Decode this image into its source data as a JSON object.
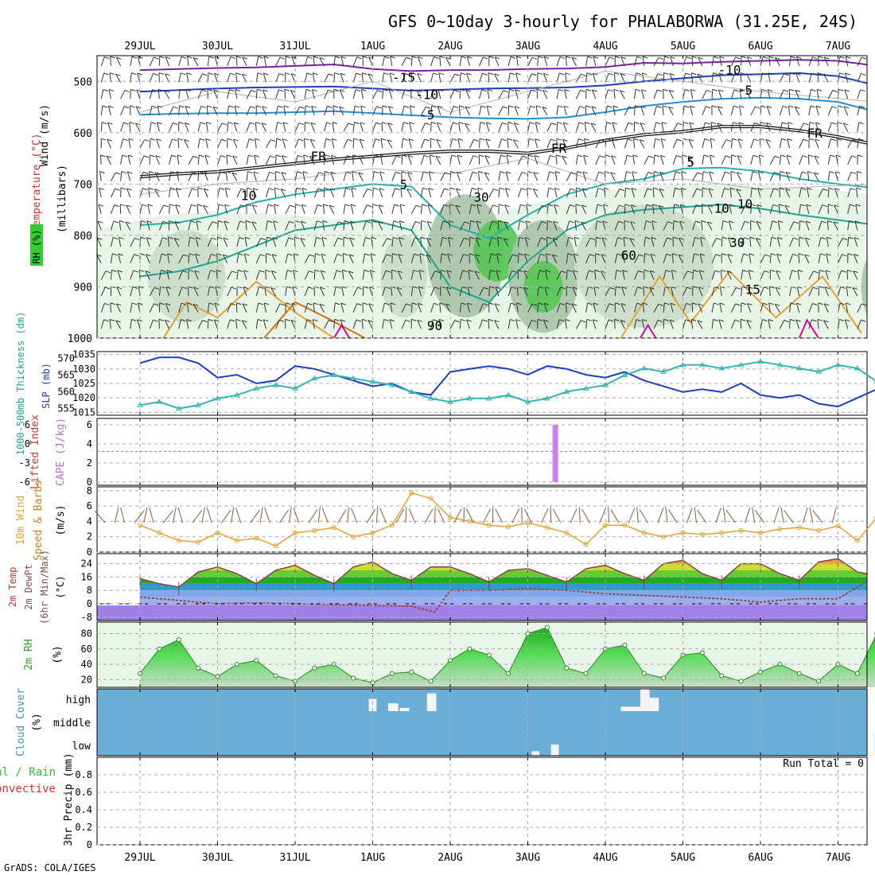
{
  "header": {
    "title": "GFS 0~10day 3-hourly for PHALABORWA (31.25E, 24S)",
    "credit": "GrADS: COLA/IGES"
  },
  "colors": {
    "rh_green": "#33cc33",
    "barb": "#333333",
    "slp_line": "#1a3fbf",
    "thickness_line": "#33b3b3",
    "cape_bar": "#c87ff0",
    "lifted_line": "#e05a5a",
    "wind_speed": "#e8a030",
    "rh2m_fill": "#33cc33",
    "cloud_fill": "#6aaed6",
    "dewpt_line": "#8b4c4c"
  },
  "chart_data": [
    {
      "id": "upper",
      "type": "contour",
      "title": "GFS 0~10day 3-hourly for PHALABORWA (31.25E, 24S)",
      "ylabel_parts": [
        "Wind (m/s)",
        "Temperature (°C)",
        "(millibars)",
        "RH (%)"
      ],
      "x_labels": [
        "29JUL",
        "30JUL",
        "31JUL",
        "1AUG",
        "2AUG",
        "3AUG",
        "4AUG",
        "5AUG",
        "6AUG",
        "7AUG"
      ],
      "y_ticks": [
        500,
        600,
        700,
        800,
        900,
        1000
      ],
      "ylim": [
        1000,
        450
      ],
      "contour_labels": [
        {
          "text": "-15",
          "day": 3.4,
          "p": 492
        },
        {
          "text": "-10",
          "day": 3.7,
          "p": 525
        },
        {
          "text": "-5",
          "day": 3.7,
          "p": 565
        },
        {
          "text": "-10",
          "day": 7.6,
          "p": 477
        },
        {
          "text": "-5",
          "day": 7.8,
          "p": 517
        },
        {
          "text": "FR",
          "day": 2.3,
          "p": 645
        },
        {
          "text": "FR",
          "day": 5.4,
          "p": 630
        },
        {
          "text": "FR",
          "day": 8.7,
          "p": 600
        },
        {
          "text": "5",
          "day": 3.4,
          "p": 700
        },
        {
          "text": "5",
          "day": 7.1,
          "p": 657
        },
        {
          "text": "10",
          "day": 7.8,
          "p": 738
        },
        {
          "text": "15",
          "day": 7.9,
          "p": 905
        },
        {
          "text": "10",
          "day": 1.4,
          "p": 722
        },
        {
          "text": "30",
          "day": 4.4,
          "p": 725
        },
        {
          "text": "10",
          "day": 7.5,
          "p": 747
        },
        {
          "text": "30",
          "day": 7.7,
          "p": 813
        },
        {
          "text": "60",
          "day": 6.3,
          "p": 838
        },
        {
          "text": "90",
          "day": 3.8,
          "p": 975
        }
      ],
      "isotherms": [
        {
          "label": "-15",
          "color": "#7a1fa0",
          "x": [
            0,
            0.5,
            1,
            1.5,
            2,
            2.5,
            3,
            3.5,
            4,
            4.5,
            5,
            5.5,
            6,
            6.5,
            7,
            7.5,
            8,
            8.5,
            9,
            9.5
          ],
          "p": [
            478,
            476,
            474,
            473,
            470,
            467,
            476,
            480,
            478,
            478,
            476,
            475,
            472,
            464,
            465,
            462,
            460,
            458,
            460,
            470
          ]
        },
        {
          "label": "-10",
          "color": "#1a3fbf",
          "x": [
            0,
            0.5,
            1,
            1.5,
            2,
            2.5,
            3,
            3.5,
            4,
            4.5,
            5,
            5.5,
            6,
            6.5,
            7,
            7.5,
            8,
            8.5,
            9,
            9.5
          ],
          "p": [
            520,
            517,
            514,
            512,
            511,
            510,
            514,
            518,
            516,
            514,
            513,
            512,
            508,
            500,
            494,
            488,
            486,
            484,
            490,
            508
          ]
        },
        {
          "label": "-5",
          "color": "#2090d0",
          "x": [
            0,
            0.5,
            1,
            1.5,
            2,
            2.5,
            3,
            3.5,
            4,
            4.5,
            5,
            5.5,
            6,
            6.5,
            7,
            7.5,
            8,
            8.5,
            9,
            9.5
          ],
          "p": [
            565,
            563,
            562,
            562,
            560,
            558,
            562,
            566,
            570,
            572,
            573,
            570,
            560,
            548,
            540,
            534,
            532,
            534,
            540,
            560
          ]
        },
        {
          "label": "FR",
          "color": "#111111",
          "x": [
            0,
            0.5,
            1,
            1.5,
            2,
            2.5,
            3,
            3.5,
            4,
            4.5,
            5,
            5.5,
            6,
            6.5,
            7,
            7.5,
            8,
            8.5,
            9,
            9.5
          ],
          "p": [
            686,
            680,
            676,
            668,
            660,
            652,
            646,
            640,
            636,
            636,
            640,
            630,
            615,
            604,
            598,
            588,
            588,
            596,
            608,
            624
          ]
        },
        {
          "label": "5",
          "color": "#22b0b0",
          "x": [
            0,
            0.5,
            1,
            1.5,
            2,
            2.5,
            3,
            3.5,
            4,
            4.5,
            5,
            5.5,
            6,
            6.5,
            7,
            7.5,
            8,
            8.5,
            9,
            9.5
          ],
          "p": [
            780,
            775,
            760,
            735,
            720,
            710,
            700,
            705,
            780,
            805,
            760,
            720,
            700,
            690,
            670,
            668,
            675,
            690,
            700,
            708
          ]
        },
        {
          "label": "10",
          "color": "#1aa890",
          "x": [
            0,
            0.5,
            1,
            1.5,
            2,
            2.5,
            3,
            3.5,
            4,
            4.5,
            5,
            5.5,
            6,
            6.5,
            7,
            7.5,
            8,
            8.5,
            9,
            9.5
          ],
          "p": [
            880,
            870,
            850,
            820,
            790,
            780,
            770,
            790,
            900,
            930,
            850,
            790,
            760,
            750,
            745,
            740,
            748,
            760,
            770,
            780
          ]
        }
      ],
      "rh_blobs": [
        {
          "day": 0.6,
          "p": 880,
          "rx": 0.5,
          "rp": 90,
          "level": 1
        },
        {
          "day": 3.4,
          "p": 880,
          "rx": 0.3,
          "rp": 80,
          "level": 1
        },
        {
          "day": 4.2,
          "p": 840,
          "rx": 0.5,
          "rp": 120,
          "level": 2
        },
        {
          "day": 4.6,
          "p": 830,
          "rx": 0.3,
          "rp": 60,
          "level": 3
        },
        {
          "day": 5.2,
          "p": 880,
          "rx": 0.45,
          "rp": 110,
          "level": 2
        },
        {
          "day": 5.2,
          "p": 900,
          "rx": 0.25,
          "rp": 50,
          "level": 3
        },
        {
          "day": 6.5,
          "p": 860,
          "rx": 0.9,
          "rp": 120,
          "level": 1
        },
        {
          "day": 9.5,
          "p": 900,
          "rx": 0.2,
          "rp": 70,
          "level": 2
        }
      ]
    },
    {
      "id": "slp_thickness",
      "type": "line",
      "ylabel": "1000-500mb Thickness (dm)",
      "ylabel_secondary": "SLP (mb)",
      "left_ticks": [
        555,
        560,
        565,
        570
      ],
      "right_ticks": [
        1015,
        1020,
        1025,
        1030,
        1035
      ],
      "left_lim": [
        553,
        572
      ],
      "right_lim": [
        1014,
        1036
      ],
      "series": [
        {
          "role": "slp",
          "color": "#1a3fbf",
          "x": [
            0,
            0.25,
            0.5,
            0.75,
            1,
            1.25,
            1.5,
            1.75,
            2,
            2.25,
            2.5,
            2.75,
            3,
            3.25,
            3.5,
            3.75,
            4,
            4.25,
            4.5,
            4.75,
            5,
            5.25,
            5.5,
            5.75,
            6,
            6.25,
            6.5,
            6.75,
            7,
            7.25,
            7.5,
            7.75,
            8,
            8.25,
            8.5,
            8.75,
            9,
            9.25,
            9.5
          ],
          "values": [
            1032,
            1034,
            1034,
            1032,
            1027,
            1028,
            1025,
            1026,
            1031,
            1030,
            1028,
            1026,
            1024,
            1025,
            1022,
            1021,
            1029,
            1030,
            1031,
            1030,
            1028,
            1031,
            1030,
            1028,
            1027,
            1029,
            1026,
            1024,
            1022,
            1023,
            1022,
            1025,
            1021,
            1020,
            1021,
            1018,
            1017,
            1020,
            1023
          ]
        },
        {
          "role": "thickness",
          "color": "#33b3b3",
          "x": [
            0,
            0.25,
            0.5,
            0.75,
            1,
            1.25,
            1.5,
            1.75,
            2,
            2.25,
            2.5,
            2.75,
            3,
            3.25,
            3.5,
            3.75,
            4,
            4.25,
            4.5,
            4.75,
            5,
            5.25,
            5.5,
            5.75,
            6,
            6.25,
            6.5,
            6.75,
            7,
            7.25,
            7.5,
            7.75,
            8,
            8.25,
            8.5,
            8.75,
            9,
            9.25,
            9.5
          ],
          "values": [
            556,
            557,
            555,
            556,
            558,
            559,
            561,
            562,
            561,
            564,
            565,
            564,
            563,
            562,
            560,
            558,
            557,
            558,
            558,
            559,
            557,
            558,
            560,
            561,
            562,
            565,
            567,
            566,
            568,
            568,
            567,
            568,
            569,
            568,
            567,
            566,
            568,
            567,
            563
          ]
        }
      ]
    },
    {
      "id": "cape_li",
      "type": "bar",
      "ylabel": "Lifted Index",
      "ylabel_secondary": "CAPE (J/kg)",
      "left_ticks": [
        "6",
        "0",
        "-3",
        "-6"
      ],
      "right_ticks": [
        "0",
        "2",
        "4",
        "6"
      ],
      "cape_bars": [
        {
          "day": 5.35,
          "value": 6
        }
      ],
      "li_zero_line": 0
    },
    {
      "id": "wind10m",
      "type": "line",
      "ylabel": "10m Wind Speed & Barbs (m/s)",
      "y_ticks": [
        0,
        2,
        4,
        6,
        8
      ],
      "ylim": [
        0,
        8.5
      ],
      "series": [
        {
          "role": "speed",
          "color": "#e8a030",
          "x": [
            0,
            0.25,
            0.5,
            0.75,
            1,
            1.25,
            1.5,
            1.75,
            2,
            2.25,
            2.5,
            2.75,
            3,
            3.25,
            3.5,
            3.75,
            4,
            4.25,
            4.5,
            4.75,
            5,
            5.25,
            5.5,
            5.75,
            6,
            6.25,
            6.5,
            6.75,
            7,
            7.25,
            7.5,
            7.75,
            8,
            8.25,
            8.5,
            8.75,
            9,
            9.25,
            9.5
          ],
          "values": [
            3.5,
            2.5,
            1.5,
            1.3,
            2.5,
            1.5,
            1.8,
            0.8,
            2.5,
            2.8,
            3.2,
            2,
            2.5,
            3.5,
            7.7,
            7,
            4.5,
            4,
            3.5,
            3.3,
            3.8,
            3.2,
            2.5,
            1,
            3.5,
            3.5,
            2.5,
            2,
            2.5,
            2.3,
            2.5,
            2.8,
            2.5,
            3,
            3.2,
            2.8,
            3.4,
            1.5,
            4.5
          ]
        }
      ]
    },
    {
      "id": "temp2m",
      "type": "area",
      "ylabel": "2m Temp 2m DewPt (6hr Min/Max) (°C)",
      "y_ticks": [
        -8,
        0,
        8,
        16,
        24
      ],
      "ylim": [
        -10,
        30
      ],
      "series": [
        {
          "role": "temp",
          "x": [
            0,
            0.25,
            0.5,
            0.75,
            1,
            1.25,
            1.5,
            1.75,
            2,
            2.25,
            2.5,
            2.75,
            3,
            3.25,
            3.5,
            3.75,
            4,
            4.25,
            4.5,
            4.75,
            5,
            5.25,
            5.5,
            5.75,
            6,
            6.25,
            6.5,
            6.75,
            7,
            7.25,
            7.5,
            7.75,
            8,
            8.25,
            8.5,
            8.75,
            9,
            9.25,
            9.5
          ],
          "values": [
            15,
            12,
            10,
            19,
            22,
            18,
            12,
            20,
            23,
            17,
            12,
            22,
            25,
            18,
            14,
            22,
            22,
            18,
            13,
            20,
            21,
            17,
            13,
            21,
            23,
            18,
            14,
            24,
            26,
            18,
            14,
            24,
            24,
            18,
            14,
            25,
            27,
            19,
            17
          ]
        },
        {
          "role": "dewpt",
          "color": "#8b4c4c",
          "x": [
            0,
            0.5,
            1,
            1.5,
            2,
            2.5,
            3,
            3.5,
            3.8,
            4,
            4.5,
            5,
            5.5,
            6,
            6.5,
            7,
            7.5,
            8,
            8.5,
            9,
            9.5
          ],
          "values": [
            4,
            2,
            0,
            0.5,
            0,
            -0.5,
            -1,
            -1.5,
            -5,
            8,
            8,
            9,
            8,
            6,
            5,
            4,
            3,
            1,
            3,
            3,
            17
          ]
        }
      ]
    },
    {
      "id": "rh2m",
      "type": "area",
      "ylabel": "2m RH (%)",
      "y_ticks": [
        20,
        40,
        60,
        80
      ],
      "ylim": [
        10,
        95
      ],
      "series": [
        {
          "role": "rh",
          "color": "#33cc33",
          "x": [
            0,
            0.25,
            0.5,
            0.75,
            1,
            1.25,
            1.5,
            1.75,
            2,
            2.25,
            2.5,
            2.75,
            3,
            3.25,
            3.5,
            3.75,
            4,
            4.25,
            4.5,
            4.75,
            5,
            5.25,
            5.5,
            5.75,
            6,
            6.25,
            6.5,
            6.75,
            7,
            7.25,
            7.5,
            7.75,
            8,
            8.25,
            8.5,
            8.75,
            9,
            9.25,
            9.5
          ],
          "values": [
            28,
            60,
            72,
            35,
            24,
            40,
            45,
            25,
            18,
            35,
            40,
            22,
            16,
            28,
            30,
            18,
            45,
            60,
            52,
            28,
            80,
            88,
            35,
            28,
            60,
            65,
            28,
            22,
            52,
            55,
            25,
            18,
            30,
            40,
            28,
            18,
            40,
            28,
            80
          ]
        }
      ]
    },
    {
      "id": "cloud",
      "type": "heatmap",
      "ylabel": "Cloud Cover (%)",
      "y_labels": [
        "high",
        "middle",
        "low"
      ],
      "gaps": [
        {
          "day": 2.95,
          "w": 0.1,
          "band": "high",
          "h": 0.55
        },
        {
          "day": 3.2,
          "w": 0.13,
          "band": "high",
          "h": 0.35
        },
        {
          "day": 3.35,
          "w": 0.12,
          "band": "high",
          "h": 0.15
        },
        {
          "day": 3.7,
          "w": 0.12,
          "band": "high",
          "h": 0.8
        },
        {
          "day": 6.2,
          "w": 0.25,
          "band": "high",
          "h": 0.2
        },
        {
          "day": 6.45,
          "w": 0.12,
          "band": "high",
          "h": 1
        },
        {
          "day": 6.57,
          "w": 0.12,
          "band": "high",
          "h": 0.6
        },
        {
          "day": 5.05,
          "w": 0.1,
          "band": "low",
          "h": 0.2
        },
        {
          "day": 5.3,
          "w": 0.1,
          "band": "low",
          "h": 0.5
        },
        {
          "day": 9.45,
          "w": 0.12,
          "band": "low",
          "h": 1
        }
      ]
    },
    {
      "id": "precip",
      "type": "bar",
      "ylabel": "3hr Precip (mm)",
      "ylabel_left_parts": [
        "Total / Rain",
        "Convective"
      ],
      "y_ticks": [
        0,
        0.2,
        0.4,
        0.6,
        0.8
      ],
      "ylim": [
        0,
        1
      ],
      "run_total": "Run Total = 0",
      "values": []
    }
  ]
}
